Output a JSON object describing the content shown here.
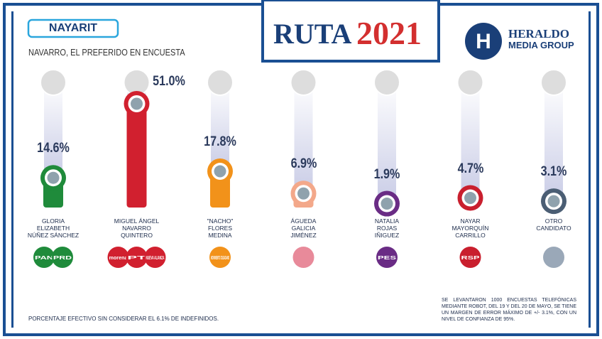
{
  "header": {
    "state": "NAYARIT",
    "headline": "NAVARRO, EL PREFERIDO EN ENCUESTA",
    "logo_left": "RUTA",
    "logo_year": "2021",
    "brand": "HERALDO",
    "brand_sub": "MEDIA GROUP"
  },
  "chart_data": {
    "type": "bar",
    "categories": [
      "GLORIA\nELIZABETH\nNÚÑEZ SÁNCHEZ",
      "MIGUEL ÁNGEL\nNAVARRO\nQUINTERO",
      "\"NACHO\"\nFLORES\nMEDINA",
      "ÁGUEDA\nGALICIA\nJIMÉNEZ",
      "NATALIA\nROJAS\nIÑIGUEZ",
      "NAYAR\nMAYORQUÍN\nCARRILLO",
      "OTRO\nCANDIDATO"
    ],
    "values": [
      14.6,
      51.0,
      17.8,
      6.9,
      1.9,
      4.7,
      3.1
    ],
    "value_labels": [
      "14.6%",
      "51.0%",
      "17.8%",
      "6.9%",
      "1.9%",
      "4.7%",
      "3.1%"
    ],
    "colors": [
      "#1f8b3b",
      "#d1202f",
      "#f2921a",
      "#f3a88a",
      "#6a2c85",
      "#c91f2e",
      "#4b5e74"
    ],
    "parties": [
      [
        "PAN",
        "PRD"
      ],
      [
        "morena",
        "PT",
        "NUEVA ALIANZA"
      ],
      [
        "MOVIMIENTO CIUDADANO"
      ],
      [],
      [
        "PES"
      ],
      [
        "RSP"
      ],
      []
    ]
  },
  "footnote": "PORCENTAJE EFECTIVO SIN CONSIDERAR EL 6.1% DE INDEFINIDOS.",
  "method_note": "SE LEVANTARON 1000 ENCUESTAS TELEFÓNICAS MEDIANTE ROBOT, DEL 19 Y DEL 20 DE MAYO, SE TIENE UN MARGEN DE ERROR MÁXIMO DE +/- 3.1%, CON UN NIVEL DE CONFIANZA DE 95%."
}
